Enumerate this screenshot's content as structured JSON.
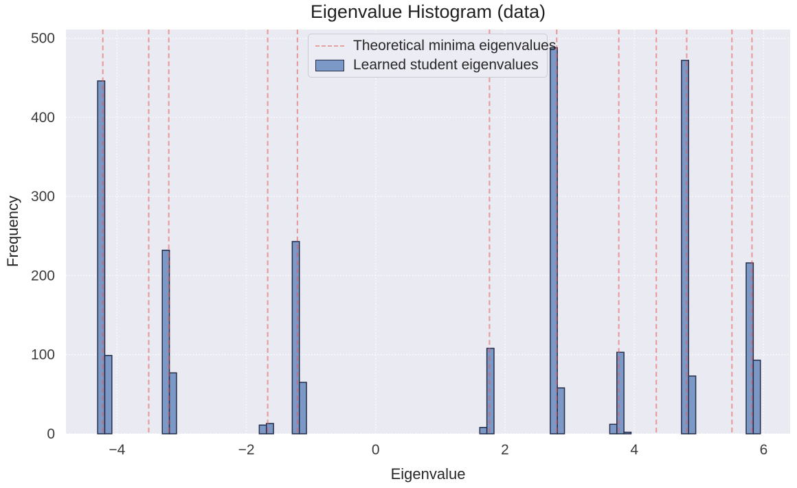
{
  "chart_data": {
    "type": "bar",
    "title": "Eigenvalue Histogram (data)",
    "xlabel": "Eigenvalue",
    "ylabel": "Frequency",
    "xlim": [
      -4.79,
      6.41
    ],
    "ylim": [
      0,
      511
    ],
    "xticks": [
      -4,
      -2,
      0,
      2,
      4,
      6
    ],
    "xtick_labels": [
      "−4",
      "−2",
      "0",
      "2",
      "4",
      "6"
    ],
    "yticks": [
      0,
      100,
      200,
      300,
      400,
      500
    ],
    "ytick_labels": [
      "0",
      "100",
      "200",
      "300",
      "400",
      "500"
    ],
    "grid": "white-dotted-on-lavender",
    "colors": {
      "plot_bg": "#eaeaf2",
      "grid": "#ffffff",
      "vline": "#e85b5b",
      "bar_fill": "#7b98c6",
      "bar_edge": "#232b47"
    },
    "legend": {
      "position": "upper center-left",
      "items": [
        {
          "label": "Theoretical minima eigenvalues",
          "type": "dashed-line"
        },
        {
          "label": "Learned student eigenvalues",
          "type": "filled-patch"
        }
      ]
    },
    "series": [
      {
        "name": "Theoretical minima eigenvalues",
        "type": "vlines",
        "style": "dashed",
        "values": [
          -4.22,
          -3.51,
          -3.2,
          -1.67,
          -1.21,
          1.76,
          2.8,
          3.76,
          4.34,
          4.81,
          5.51,
          5.82
        ]
      },
      {
        "name": "Learned student eigenvalues",
        "type": "histogram",
        "bins": [
          {
            "x0": -4.3,
            "x1": -4.19,
            "count": 446
          },
          {
            "x0": -4.19,
            "x1": -4.08,
            "count": 99
          },
          {
            "x0": -3.3,
            "x1": -3.19,
            "count": 232
          },
          {
            "x0": -3.19,
            "x1": -3.08,
            "count": 77
          },
          {
            "x0": -1.8,
            "x1": -1.69,
            "count": 11
          },
          {
            "x0": -1.69,
            "x1": -1.58,
            "count": 13
          },
          {
            "x0": -1.29,
            "x1": -1.18,
            "count": 243
          },
          {
            "x0": -1.18,
            "x1": -1.07,
            "count": 65
          },
          {
            "x0": 1.61,
            "x1": 1.72,
            "count": 8
          },
          {
            "x0": 1.72,
            "x1": 1.83,
            "count": 108
          },
          {
            "x0": 2.7,
            "x1": 2.81,
            "count": 488
          },
          {
            "x0": 2.81,
            "x1": 2.92,
            "count": 58
          },
          {
            "x0": 3.62,
            "x1": 3.73,
            "count": 12
          },
          {
            "x0": 3.73,
            "x1": 3.84,
            "count": 103
          },
          {
            "x0": 3.84,
            "x1": 3.95,
            "count": 2
          },
          {
            "x0": 4.73,
            "x1": 4.84,
            "count": 472
          },
          {
            "x0": 4.84,
            "x1": 4.95,
            "count": 73
          },
          {
            "x0": 5.73,
            "x1": 5.84,
            "count": 216
          },
          {
            "x0": 5.84,
            "x1": 5.95,
            "count": 93
          }
        ]
      }
    ]
  }
}
